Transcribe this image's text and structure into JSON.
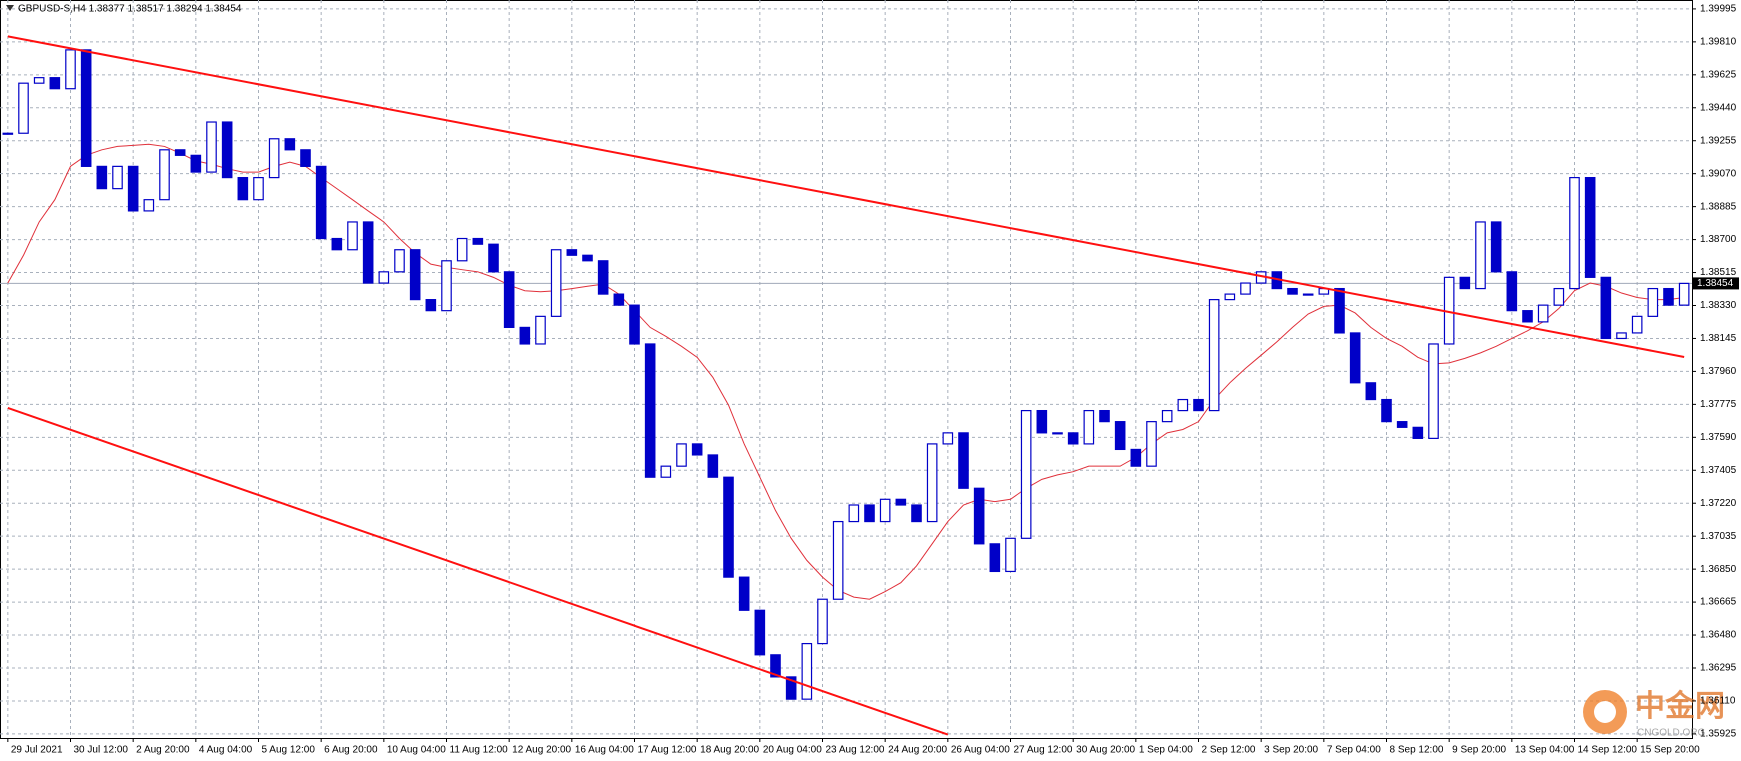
{
  "chart_data": {
    "type": "candlestick",
    "title": "GBPUSD-S,H4  1.38377 1.38517 1.38294 1.38454",
    "watermark": "中金网",
    "watermark_sub": "CNGOLD.ORG",
    "categories": [
      "29 Jul 2021",
      null,
      null,
      null,
      "30 Jul 12:00",
      null,
      null,
      null,
      "2 Aug 20:00",
      null,
      null,
      null,
      "4 Aug 04:00",
      null,
      null,
      null,
      "5 Aug 12:00",
      null,
      null,
      null,
      "6 Aug 20:00",
      null,
      null,
      null,
      "10 Aug 04:00",
      null,
      null,
      null,
      "11 Aug 12:00",
      null,
      null,
      null,
      "12 Aug 20:00",
      null,
      null,
      null,
      "16 Aug 04:00",
      null,
      null,
      null,
      "17 Aug 12:00",
      null,
      null,
      null,
      "18 Aug 20:00",
      null,
      null,
      null,
      "20 Aug 04:00",
      null,
      null,
      null,
      "23 Aug 12:00",
      null,
      null,
      null,
      "24 Aug 20:00",
      null,
      null,
      null,
      "26 Aug 04:00",
      null,
      null,
      null,
      "27 Aug 12:00",
      null,
      null,
      null,
      "30 Aug 20:00",
      null,
      null,
      null,
      "1 Sep 04:00",
      null,
      null,
      null,
      "2 Sep 12:00",
      null,
      null,
      null,
      "3 Sep 20:00",
      null,
      null,
      null,
      "7 Sep 04:00",
      null,
      null,
      null,
      "8 Sep 12:00",
      null,
      null,
      null,
      "9 Sep 20:00",
      null,
      null,
      null,
      "13 Sep 04:00",
      null,
      null,
      null,
      "14 Sep 12:00",
      null,
      null,
      null,
      "15 Sep 20:00",
      null,
      null,
      null
    ],
    "close": [
      1.39297,
      1.39578,
      1.39609,
      1.39547,
      1.39765,
      1.39111,
      1.38986,
      1.39111,
      1.38861,
      1.38924,
      1.39204,
      1.39173,
      1.39079,
      1.3936,
      1.39048,
      1.38924,
      1.39048,
      1.39266,
      1.39204,
      1.39111,
      1.38706,
      1.38643,
      1.38799,
      1.38456,
      1.38519,
      1.38643,
      1.38363,
      1.38301,
      1.38581,
      1.38706,
      1.38674,
      1.38519,
      1.38207,
      1.38114,
      1.38269,
      1.38643,
      1.38612,
      1.38581,
      1.38394,
      1.38332,
      1.38114,
      1.37366,
      1.37428,
      1.37553,
      1.37491,
      1.37366,
      1.36805,
      1.36619,
      1.36369,
      1.36245,
      1.3612,
      1.36432,
      1.36681,
      1.37117,
      1.3721,
      1.37117,
      1.37242,
      1.3721,
      1.37117,
      1.37553,
      1.37615,
      1.37304,
      1.36992,
      1.36837,
      1.37023,
      1.3774,
      1.37615,
      1.37615,
      1.37553,
      1.3774,
      1.37678,
      1.37522,
      1.37428,
      1.37678,
      1.3774,
      1.37802,
      1.3774,
      1.38363,
      1.38394,
      1.38456,
      1.38519,
      1.38425,
      1.38394,
      1.38394,
      1.38425,
      1.38176,
      1.37896,
      1.37802,
      1.37678,
      1.37646,
      1.37584,
      1.38114,
      1.38488,
      1.38425,
      1.38799,
      1.38519,
      1.38301,
      1.38238,
      1.38332,
      1.38425,
      1.39048,
      1.38488,
      1.38145,
      1.38176,
      1.38269,
      1.38425,
      1.38332,
      1.38454
    ],
    "up_color": "#ffffff",
    "down_color": "#0000c8",
    "candle_edge": "#0000c8",
    "ma": {
      "color": "#e0303a",
      "values": [
        1.38456,
        1.38612,
        1.38799,
        1.38924,
        1.39111,
        1.39173,
        1.39204,
        1.39223,
        1.39229,
        1.39235,
        1.39223,
        1.39185,
        1.39142,
        1.39123,
        1.39098,
        1.39079,
        1.39079,
        1.39111,
        1.39135,
        1.39111,
        1.39048,
        1.38986,
        1.38924,
        1.38861,
        1.38799,
        1.38706,
        1.38625,
        1.38562,
        1.38544,
        1.38531,
        1.38519,
        1.38488,
        1.38444,
        1.38413,
        1.38407,
        1.38413,
        1.38425,
        1.38438,
        1.3845,
        1.38394,
        1.38301,
        1.38207,
        1.38157,
        1.38101,
        1.38039,
        1.37927,
        1.37771,
        1.37553,
        1.37366,
        1.37179,
        1.37023,
        1.36899,
        1.36805,
        1.36731,
        1.36693,
        1.36681,
        1.36724,
        1.36774,
        1.36868,
        1.36992,
        1.37117,
        1.3721,
        1.37242,
        1.37229,
        1.37242,
        1.37304,
        1.37354,
        1.37379,
        1.37397,
        1.37428,
        1.37428,
        1.37428,
        1.37478,
        1.37553,
        1.37615,
        1.37634,
        1.37678,
        1.37802,
        1.37896,
        1.37977,
        1.38051,
        1.38126,
        1.38207,
        1.38282,
        1.38325,
        1.38332,
        1.38288,
        1.38207,
        1.38145,
        1.38101,
        1.38039,
        1.38002,
        1.38008,
        1.38033,
        1.38064,
        1.38101,
        1.38145,
        1.38188,
        1.38238,
        1.38313,
        1.38413,
        1.38456,
        1.38438,
        1.384,
        1.38375,
        1.38363,
        1.38363,
        1.38375
      ]
    },
    "trendlines": [
      {
        "color": "#ff1010",
        "points": [
          [
            0,
            1.39841
          ],
          [
            107,
            1.38041
          ]
        ]
      },
      {
        "color": "#ff1010",
        "points": [
          [
            0,
            1.37755
          ],
          [
            60,
            1.35921
          ]
        ]
      }
    ],
    "current_price": 1.38454,
    "ylim": [
      1.35902,
      1.40045
    ],
    "yticks": [
      1.35925,
      {
        "value": 1.3611,
        "label": "1.36110"
      },
      1.36295,
      {
        "value": 1.3648,
        "label": "1.36480"
      },
      1.36665,
      {
        "value": 1.3685,
        "label": "1.36850"
      },
      1.37035,
      {
        "value": 1.3722,
        "label": "1.37220"
      },
      1.37405,
      {
        "value": 1.3759,
        "label": "1.37590"
      },
      1.37775,
      {
        "value": 1.3796,
        "label": "1.37960"
      },
      1.38145,
      {
        "value": 1.3833,
        "label": "1.38330"
      },
      1.38515,
      {
        "value": 1.387,
        "label": "1.38700"
      },
      1.38885,
      {
        "value": 1.3907,
        "label": "1.39070"
      },
      1.39255,
      {
        "value": 1.3944,
        "label": "1.39440"
      },
      1.39625,
      {
        "value": 1.3981,
        "label": "1.39810"
      },
      1.39995
    ],
    "grid": true
  }
}
